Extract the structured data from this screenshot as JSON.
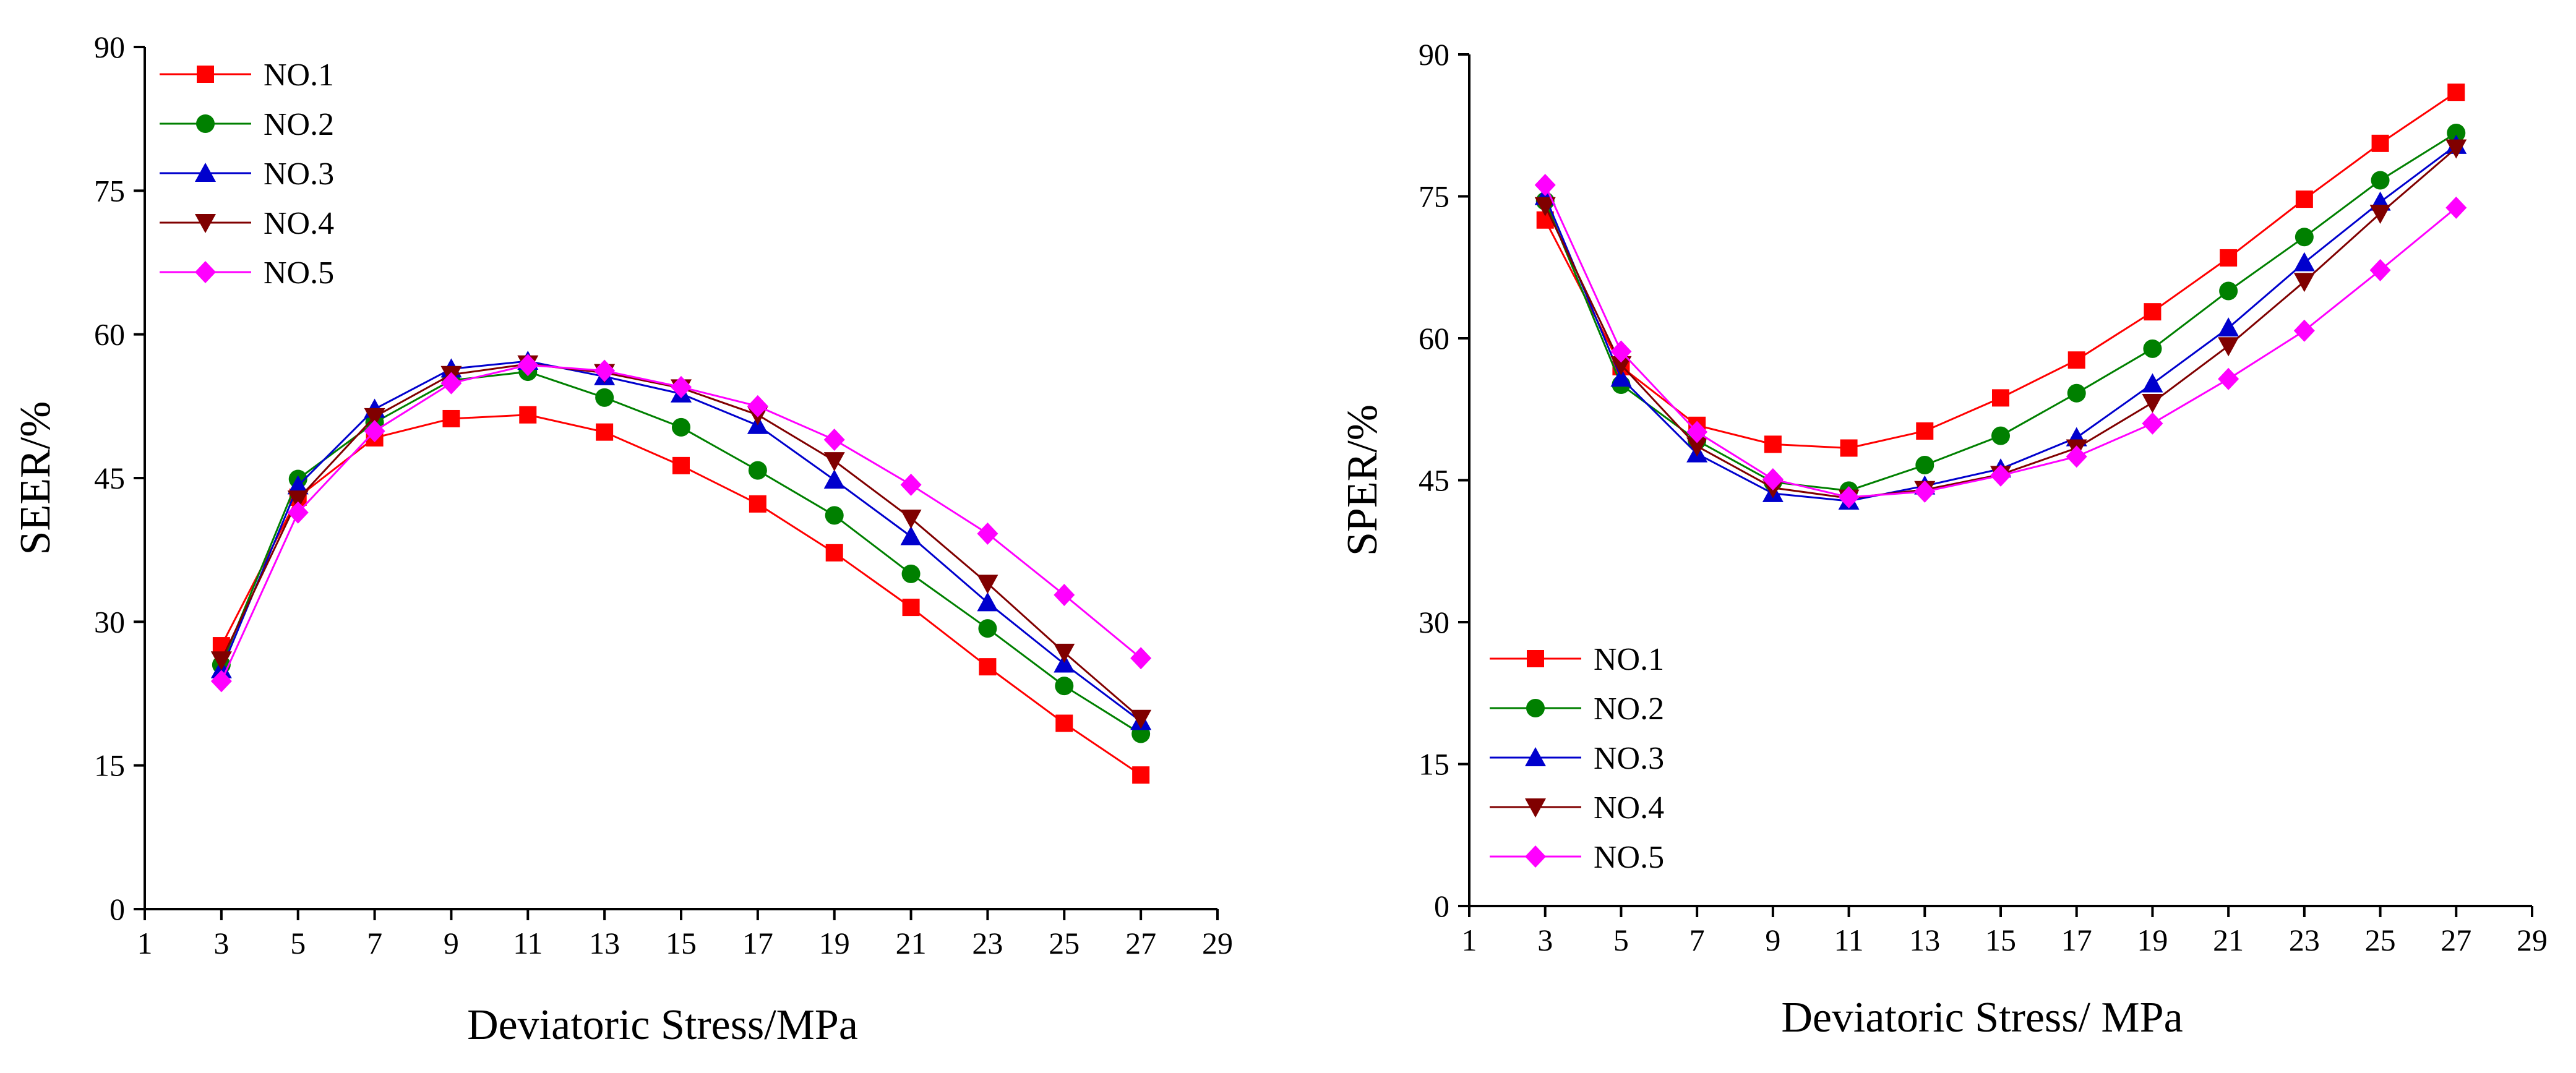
{
  "chart_data": [
    {
      "type": "line",
      "ylabel": "SEER/%",
      "xlabel": "Deviatoric Stress/MPa",
      "xlim": [
        1,
        29
      ],
      "ylim": [
        0,
        90
      ],
      "x_ticks": [
        "1",
        "3",
        "5",
        "7",
        "9",
        "11",
        "13",
        "15",
        "17",
        "19",
        "21",
        "23",
        "25",
        "27",
        "29"
      ],
      "y_ticks": [
        "0",
        "15",
        "30",
        "45",
        "60",
        "75",
        "90"
      ],
      "legend_position": "top-left",
      "x": [
        3,
        5,
        7,
        9,
        11,
        13,
        15,
        17,
        19,
        21,
        23,
        25,
        27
      ],
      "series": [
        {
          "name": "NO.1",
          "color": "#ff0000",
          "marker": "square",
          "values": [
            27.5,
            43.0,
            49.2,
            51.2,
            51.6,
            49.8,
            46.3,
            42.3,
            37.2,
            31.5,
            25.3,
            19.4,
            14.0
          ]
        },
        {
          "name": "NO.2",
          "color": "#008000",
          "marker": "circle",
          "values": [
            25.5,
            44.9,
            50.8,
            55.2,
            56.1,
            53.4,
            50.3,
            45.8,
            41.1,
            35.0,
            29.3,
            23.3,
            18.3
          ]
        },
        {
          "name": "NO.3",
          "color": "#0000cd",
          "marker": "triangle-up",
          "values": [
            25.0,
            44.2,
            52.2,
            56.4,
            57.2,
            55.6,
            53.8,
            50.5,
            44.8,
            38.9,
            32.0,
            25.6,
            19.6
          ]
        },
        {
          "name": "NO.4",
          "color": "#800000",
          "marker": "triangle-down",
          "values": [
            26.0,
            42.8,
            51.4,
            55.8,
            56.9,
            56.0,
            54.4,
            51.6,
            46.8,
            40.8,
            34.0,
            26.8,
            19.9
          ]
        },
        {
          "name": "NO.5",
          "color": "#ff00ff",
          "marker": "diamond",
          "values": [
            23.8,
            41.4,
            49.9,
            54.9,
            56.8,
            56.2,
            54.5,
            52.5,
            49.0,
            44.3,
            39.2,
            32.8,
            26.2
          ]
        }
      ]
    },
    {
      "type": "line",
      "ylabel": "SPER/%",
      "xlabel": "Deviatoric Stress/ MPa",
      "xlim": [
        1,
        29
      ],
      "ylim": [
        0,
        90
      ],
      "x_ticks": [
        "1",
        "3",
        "5",
        "7",
        "9",
        "11",
        "13",
        "15",
        "17",
        "19",
        "21",
        "23",
        "25",
        "27",
        "29"
      ],
      "y_ticks": [
        "0",
        "15",
        "30",
        "45",
        "60",
        "75",
        "90"
      ],
      "legend_position": "bottom-left",
      "x": [
        3,
        5,
        7,
        9,
        11,
        13,
        15,
        17,
        19,
        21,
        23,
        25,
        27
      ],
      "series": [
        {
          "name": "NO.1",
          "color": "#ff0000",
          "marker": "square",
          "values": [
            72.5,
            57.0,
            50.8,
            48.8,
            48.4,
            50.2,
            53.7,
            57.7,
            62.8,
            68.5,
            74.7,
            80.6,
            86.0
          ]
        },
        {
          "name": "NO.2",
          "color": "#008000",
          "marker": "circle",
          "values": [
            74.5,
            55.1,
            49.2,
            44.8,
            43.9,
            46.6,
            49.7,
            54.2,
            58.9,
            65.0,
            70.7,
            76.7,
            81.7
          ]
        },
        {
          "name": "NO.3",
          "color": "#0000cd",
          "marker": "triangle-up",
          "values": [
            75.0,
            55.8,
            47.8,
            43.6,
            42.8,
            44.4,
            46.2,
            49.5,
            55.2,
            61.1,
            68.0,
            74.4,
            80.4
          ]
        },
        {
          "name": "NO.4",
          "color": "#800000",
          "marker": "triangle-down",
          "values": [
            74.0,
            57.2,
            48.6,
            44.2,
            43.1,
            44.0,
            45.6,
            48.4,
            53.2,
            59.2,
            66.0,
            73.2,
            80.1
          ]
        },
        {
          "name": "NO.5",
          "color": "#ff00ff",
          "marker": "diamond",
          "values": [
            76.2,
            58.6,
            50.1,
            45.1,
            43.2,
            43.8,
            45.5,
            47.5,
            51.0,
            55.7,
            60.8,
            67.2,
            73.8
          ]
        }
      ]
    }
  ]
}
